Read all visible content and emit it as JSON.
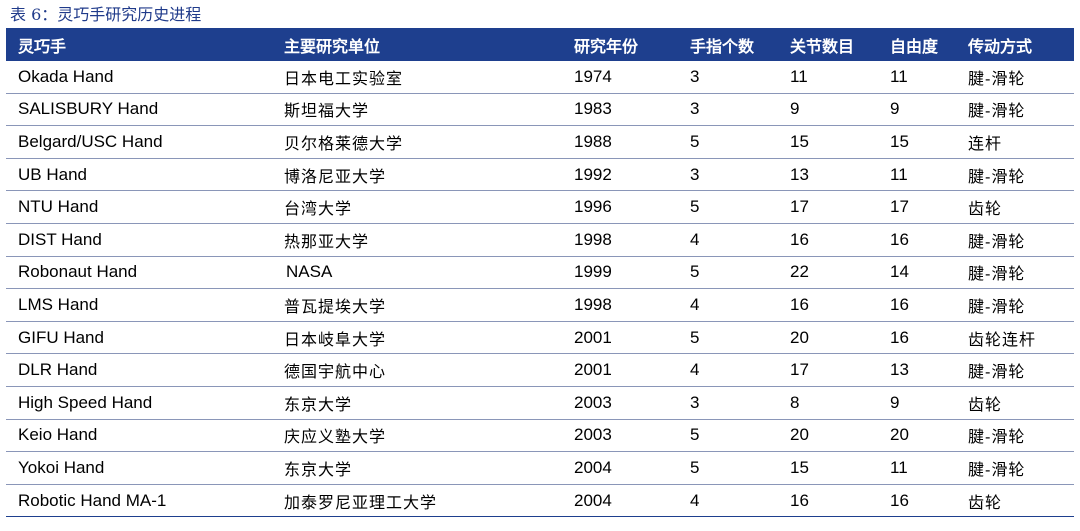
{
  "caption": "表 6：灵巧手研究历史进程",
  "table": {
    "headers": [
      "灵巧手",
      "主要研究单位",
      "研究年份",
      "手指个数",
      "关节数目",
      "自由度",
      "传动方式"
    ],
    "rows": [
      [
        "Okada Hand",
        "日本电工实验室",
        "1974",
        "3",
        "11",
        "11",
        "腱-滑轮"
      ],
      [
        "SALISBURY Hand",
        "斯坦福大学",
        "1983",
        "3",
        "9",
        "9",
        "腱-滑轮"
      ],
      [
        "Belgard/USC Hand",
        "贝尔格莱德大学",
        "1988",
        "5",
        "15",
        "15",
        "连杆"
      ],
      [
        "UB Hand",
        "博洛尼亚大学",
        "1992",
        "3",
        "13",
        "11",
        "腱-滑轮"
      ],
      [
        "NTU Hand",
        "台湾大学",
        "1996",
        "5",
        "17",
        "17",
        "齿轮"
      ],
      [
        "DIST Hand",
        "热那亚大学",
        "1998",
        "4",
        "16",
        "16",
        "腱-滑轮"
      ],
      [
        "Robonaut Hand",
        "NASA",
        "1999",
        "5",
        "22",
        "14",
        "腱-滑轮"
      ],
      [
        "LMS Hand",
        "普瓦提埃大学",
        "1998",
        "4",
        "16",
        "16",
        "腱-滑轮"
      ],
      [
        "GIFU Hand",
        "日本岐阜大学",
        "2001",
        "5",
        "20",
        "16",
        "齿轮连杆"
      ],
      [
        "DLR Hand",
        "德国宇航中心",
        "2001",
        "4",
        "17",
        "13",
        "腱-滑轮"
      ],
      [
        "High Speed Hand",
        "东京大学",
        "2003",
        "3",
        "8",
        "9",
        "齿轮"
      ],
      [
        "Keio Hand",
        "庆应义塾大学",
        "2003",
        "5",
        "20",
        "20",
        "腱-滑轮"
      ],
      [
        "Yokoi Hand",
        "东京大学",
        "2004",
        "5",
        "15",
        "11",
        "腱-滑轮"
      ],
      [
        "Robotic Hand MA-1",
        "加泰罗尼亚理工大学",
        "2004",
        "4",
        "16",
        "16",
        "齿轮"
      ]
    ]
  },
  "colors": {
    "header_bg": "#1e3f8e",
    "caption": "#1f3a8a",
    "row_divider": "#8a96b8"
  }
}
